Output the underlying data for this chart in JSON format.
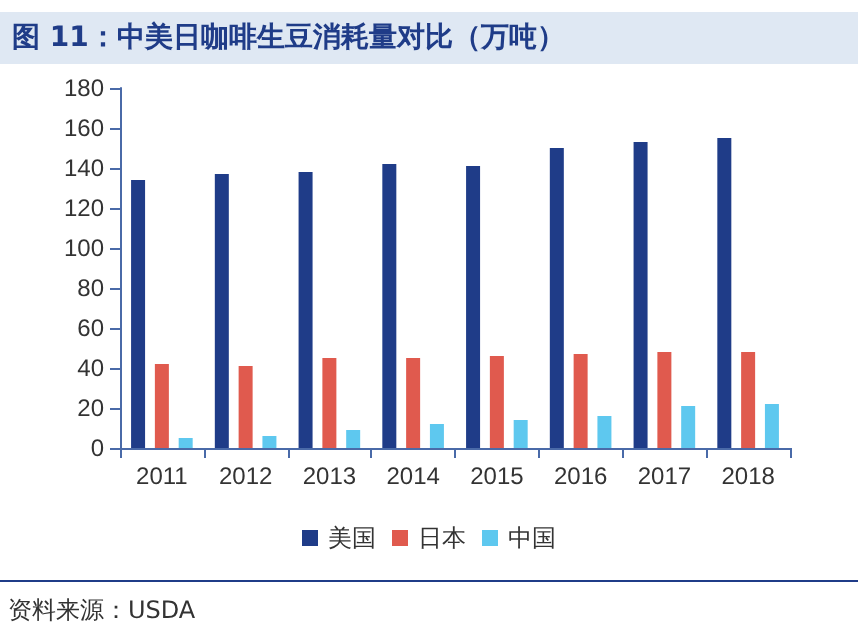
{
  "chart_data": {
    "type": "bar",
    "title": "图 11：中美日咖啡生豆消耗量对比（万吨）",
    "categories": [
      "2011",
      "2012",
      "2013",
      "2014",
      "2015",
      "2016",
      "2017",
      "2018"
    ],
    "series": [
      {
        "name": "美国",
        "color": "#1f3c88",
        "values": [
          134,
          137,
          138,
          142,
          141,
          150,
          153,
          155
        ]
      },
      {
        "name": "日本",
        "color": "#e05a4e",
        "values": [
          42,
          41,
          45,
          45,
          46,
          47,
          48,
          48
        ]
      },
      {
        "name": "中国",
        "color": "#5ec8ef",
        "values": [
          5,
          6,
          9,
          12,
          14,
          16,
          21,
          22
        ]
      }
    ],
    "ylim": [
      0,
      180
    ],
    "yticks": [
      0,
      20,
      40,
      60,
      80,
      100,
      120,
      140,
      160,
      180
    ],
    "grid": false,
    "legend": "bottom",
    "annotations": [
      "资料来源：USDA"
    ]
  }
}
